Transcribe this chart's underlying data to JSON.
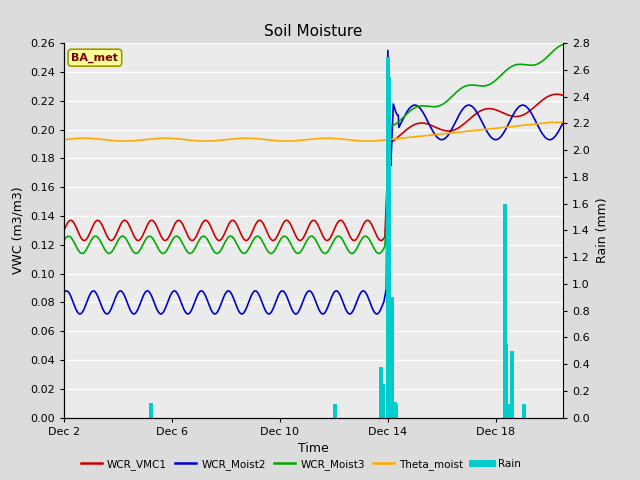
{
  "title": "Soil Moisture",
  "ylabel_left": "VWC (m3/m3)",
  "ylabel_right": "Rain (mm)",
  "xlabel": "Time",
  "ylim_left": [
    0.0,
    0.26
  ],
  "ylim_right": [
    0.0,
    2.8
  ],
  "xtick_labels": [
    "Dec 2",
    "Dec 6",
    "Dec 10",
    "Dec 14",
    "Dec 18"
  ],
  "xtick_positions": [
    0,
    4,
    8,
    12,
    16
  ],
  "yticks_left": [
    0.0,
    0.02,
    0.04,
    0.06,
    0.08,
    0.1,
    0.12,
    0.14,
    0.16,
    0.18,
    0.2,
    0.22,
    0.24,
    0.26
  ],
  "yticks_right": [
    0.0,
    0.2,
    0.4,
    0.6,
    0.8,
    1.0,
    1.2,
    1.4,
    1.6,
    1.8,
    2.0,
    2.2,
    2.4,
    2.6,
    2.8
  ],
  "legend_entries": [
    "WCR_VMC1",
    "WCR_Moist2",
    "WCR_Moist3",
    "Theta_moist",
    "Rain"
  ],
  "legend_colors": [
    "#cc0000",
    "#0000cc",
    "#00aa00",
    "#ffaa00",
    "#00cccc"
  ],
  "ba_met_label": "BA_met",
  "bg_color": "#dcdcdc",
  "plot_bg_color": "#ebebeb",
  "grid_color": "#ffffff",
  "title_fontsize": 11,
  "label_fontsize": 9,
  "tick_fontsize": 8,
  "xlim": [
    0,
    18.5
  ],
  "n_days": 18.5,
  "color_red": "#cc0000",
  "color_blue": "#0000cc",
  "color_green": "#00aa00",
  "color_orange": "#ffaa00",
  "color_cyan": "#00cccc"
}
